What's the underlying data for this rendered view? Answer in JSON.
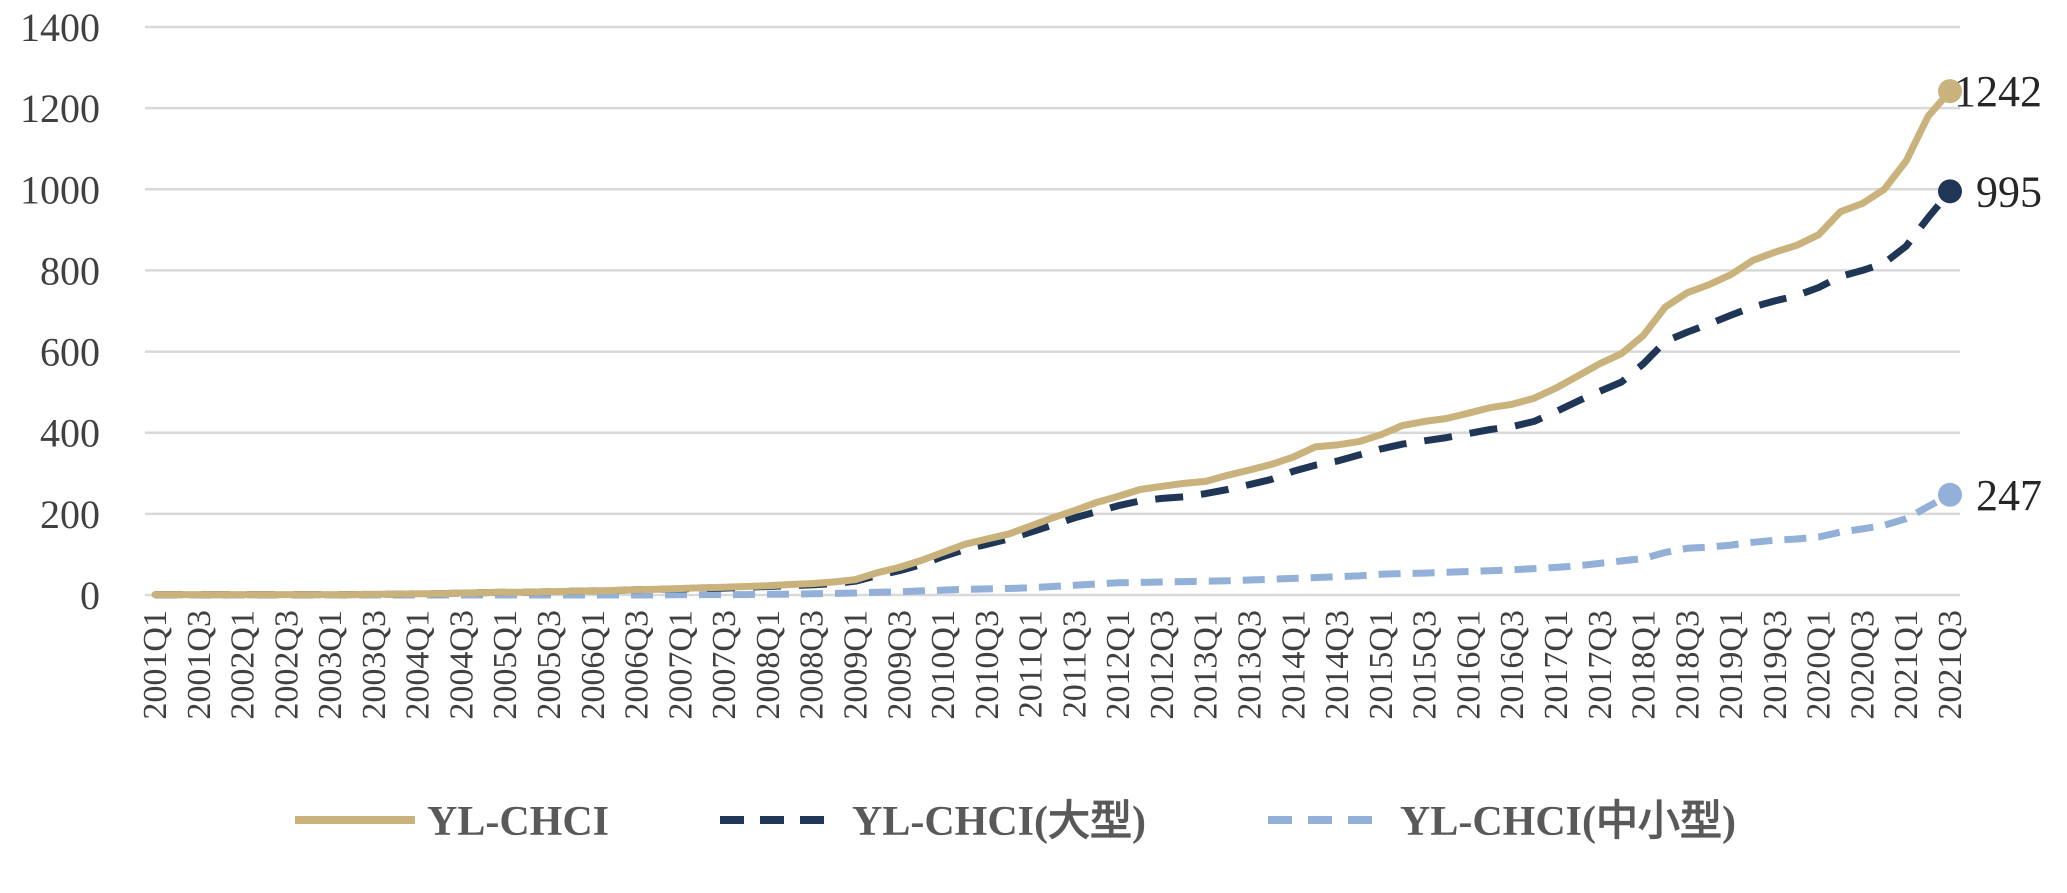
{
  "chart_data": {
    "type": "line",
    "title": "",
    "xlabel": "",
    "ylabel": "",
    "ylim": [
      0,
      1400
    ],
    "yticks": [
      0,
      200,
      400,
      600,
      800,
      1000,
      1200,
      1400
    ],
    "grid": "horizontal",
    "legend_position": "bottom",
    "x": [
      "2001Q1",
      "2001Q2",
      "2001Q3",
      "2001Q4",
      "2002Q1",
      "2002Q2",
      "2002Q3",
      "2002Q4",
      "2003Q1",
      "2003Q2",
      "2003Q3",
      "2003Q4",
      "2004Q1",
      "2004Q2",
      "2004Q3",
      "2004Q4",
      "2005Q1",
      "2005Q2",
      "2005Q3",
      "2005Q4",
      "2006Q1",
      "2006Q2",
      "2006Q3",
      "2006Q4",
      "2007Q1",
      "2007Q2",
      "2007Q3",
      "2007Q4",
      "2008Q1",
      "2008Q2",
      "2008Q3",
      "2008Q4",
      "2009Q1",
      "2009Q2",
      "2009Q3",
      "2009Q4",
      "2010Q1",
      "2010Q2",
      "2010Q3",
      "2010Q4",
      "2011Q1",
      "2011Q2",
      "2011Q3",
      "2011Q4",
      "2012Q1",
      "2012Q2",
      "2012Q3",
      "2012Q4",
      "2013Q1",
      "2013Q2",
      "2013Q3",
      "2013Q4",
      "2014Q1",
      "2014Q2",
      "2014Q3",
      "2014Q4",
      "2015Q1",
      "2015Q2",
      "2015Q3",
      "2015Q4",
      "2016Q1",
      "2016Q2",
      "2016Q3",
      "2016Q4",
      "2017Q1",
      "2017Q2",
      "2017Q3",
      "2017Q4",
      "2018Q1",
      "2018Q2",
      "2018Q3",
      "2018Q4",
      "2019Q1",
      "2019Q2",
      "2019Q3",
      "2019Q4",
      "2020Q1",
      "2020Q2",
      "2020Q3",
      "2020Q4",
      "2021Q1",
      "2021Q2",
      "2021Q3"
    ],
    "xtick_labels": [
      "2001Q1",
      "2001Q3",
      "2002Q1",
      "2002Q3",
      "2003Q1",
      "2003Q3",
      "2004Q1",
      "2004Q3",
      "2005Q1",
      "2005Q3",
      "2006Q1",
      "2006Q3",
      "2007Q1",
      "2007Q3",
      "2008Q1",
      "2008Q3",
      "2009Q1",
      "2009Q3",
      "2010Q1",
      "2010Q3",
      "2011Q1",
      "2011Q3",
      "2012Q1",
      "2012Q3",
      "2013Q1",
      "2013Q3",
      "2014Q1",
      "2014Q3",
      "2015Q1",
      "2015Q3",
      "2016Q1",
      "2016Q3",
      "2017Q1",
      "2017Q3",
      "2018Q1",
      "2018Q3",
      "2019Q1",
      "2019Q3",
      "2020Q1",
      "2020Q3",
      "2021Q1",
      "2021Q3"
    ],
    "series": [
      {
        "name": "YL-CHCI",
        "color": "#c9b27c",
        "style": "solid",
        "end_label": "1242",
        "values": [
          1,
          1,
          1,
          1,
          1,
          1,
          1,
          1,
          1,
          1,
          2,
          2,
          3,
          3,
          5,
          6,
          7,
          7,
          8,
          9,
          10,
          11,
          13,
          14,
          16,
          18,
          19,
          21,
          23,
          26,
          28,
          32,
          38,
          55,
          68,
          85,
          105,
          125,
          138,
          150,
          170,
          190,
          208,
          228,
          243,
          260,
          268,
          275,
          280,
          295,
          308,
          322,
          340,
          365,
          370,
          378,
          395,
          418,
          428,
          435,
          448,
          462,
          470,
          485,
          510,
          540,
          570,
          595,
          640,
          710,
          745,
          765,
          790,
          825,
          845,
          862,
          888,
          945,
          965,
          1000,
          1070,
          1180,
          1242
        ]
      },
      {
        "name": "YL-CHCI(大型)",
        "color": "#1f3657",
        "style": "dashed",
        "end_label": "995",
        "values": [
          1,
          1,
          1,
          1,
          1,
          1,
          1,
          1,
          1,
          1,
          2,
          2,
          3,
          3,
          5,
          6,
          7,
          7,
          8,
          9,
          10,
          11,
          13,
          14,
          15,
          16,
          17,
          19,
          21,
          23,
          25,
          28,
          34,
          48,
          60,
          75,
          95,
          112,
          125,
          138,
          155,
          172,
          190,
          205,
          220,
          232,
          238,
          242,
          250,
          260,
          272,
          285,
          305,
          320,
          330,
          345,
          360,
          372,
          380,
          388,
          398,
          408,
          415,
          428,
          452,
          478,
          502,
          525,
          570,
          625,
          648,
          668,
          690,
          710,
          725,
          738,
          758,
          785,
          800,
          818,
          860,
          930,
          995
        ]
      },
      {
        "name": "YL-CHCI(中小型)",
        "color": "#93b0d8",
        "style": "dashed",
        "end_label": "247",
        "values": [
          0,
          0,
          0,
          0,
          0,
          0,
          0,
          0,
          0,
          0,
          0,
          0,
          0,
          0,
          0,
          0,
          0,
          0,
          0,
          0,
          0,
          0,
          0,
          0,
          1,
          1,
          1,
          1,
          2,
          2,
          3,
          4,
          5,
          7,
          8,
          10,
          12,
          14,
          15,
          16,
          18,
          21,
          24,
          27,
          30,
          31,
          32,
          33,
          34,
          35,
          37,
          39,
          41,
          43,
          45,
          47,
          51,
          53,
          54,
          56,
          58,
          60,
          62,
          65,
          68,
          72,
          78,
          84,
          90,
          105,
          115,
          118,
          123,
          130,
          135,
          138,
          143,
          155,
          163,
          172,
          188,
          218,
          247
        ]
      }
    ]
  }
}
